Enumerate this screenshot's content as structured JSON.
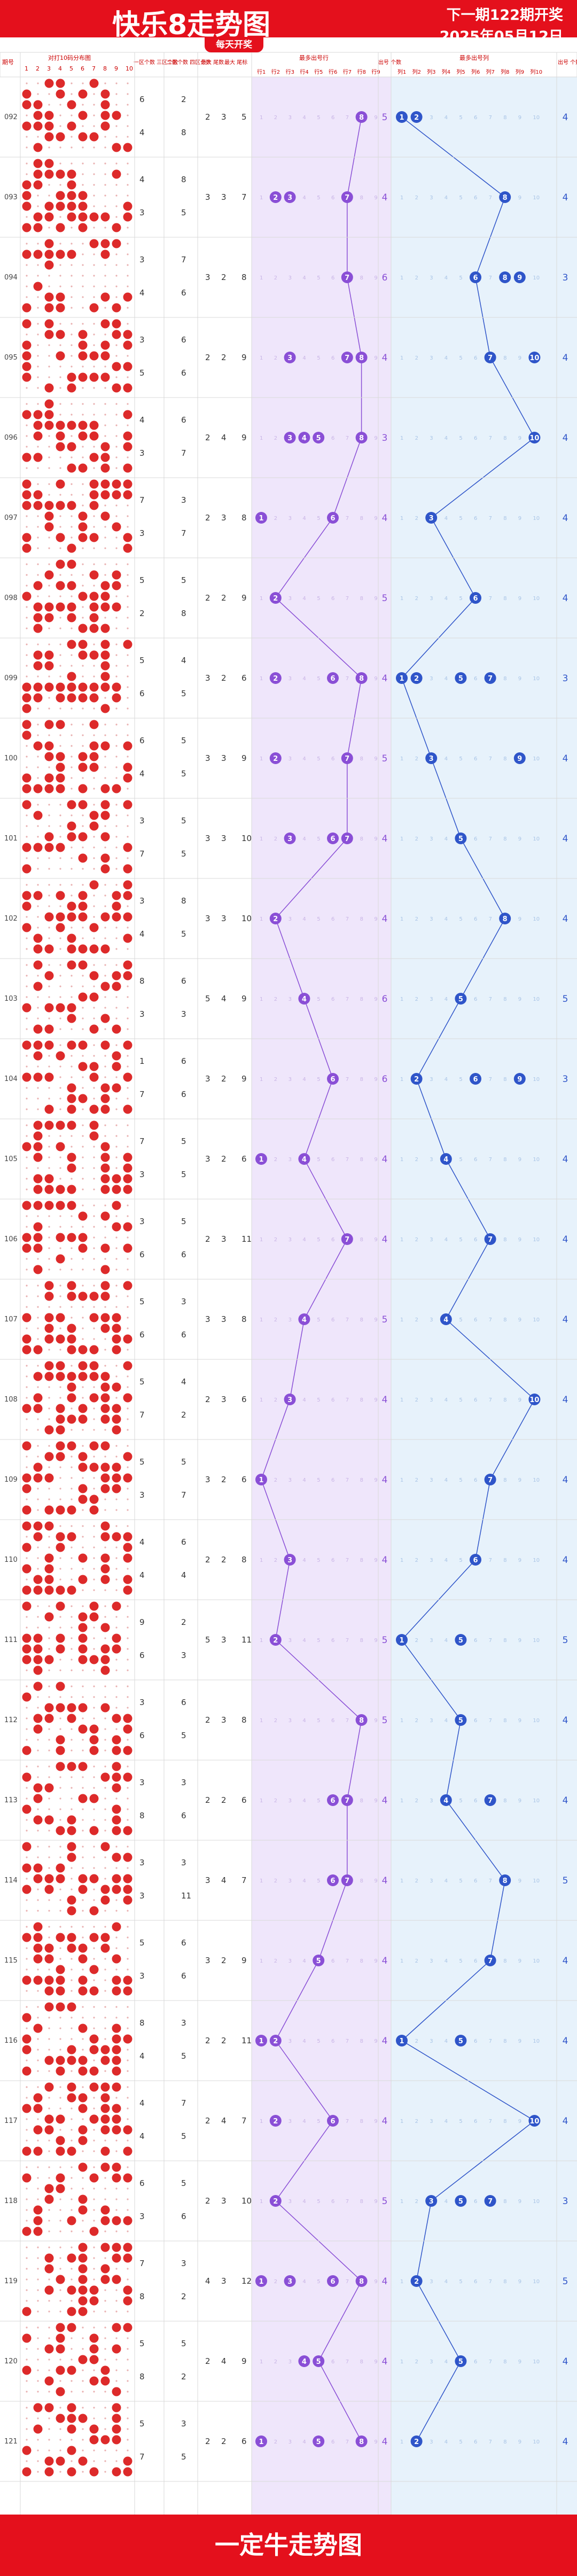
{
  "header": {
    "title": "快乐8走势图",
    "next_issue": "下一期122期开奖",
    "date": "2025年05月12日",
    "badge": "每天开奖"
  },
  "footer": {
    "brand": "一定牛走势图"
  },
  "colors": {
    "brand_red": "#e4101c",
    "ball_red": "#dd2a2a",
    "ball_purple": "#8a4fd6",
    "ball_blue": "#2f55c9",
    "band_purple": "#efe6fb",
    "band_blue": "#e7f2fb",
    "grid": "#d9d9d9"
  },
  "chart_data": [
    {
      "type": "table",
      "title": "",
      "columns": {
        "issue": "期号",
        "distribution": "对打10码分布图",
        "distribution_numbers": [
          "1",
          "2",
          "3",
          "4",
          "5",
          "6",
          "7",
          "8",
          "9",
          "10"
        ],
        "zone12": "一区个数 三区个数",
        "zone23": "二区个数 四区个数",
        "max_tail": "最大 尾数",
        "max_mark": "最大 尾标",
        "tail_count": "最多出号行",
        "tail_labels": [
          "行1",
          "行2",
          "行3",
          "行4",
          "行5",
          "行6",
          "行7",
          "行8",
          "行9"
        ],
        "out_count_a": "出号 个数",
        "section": "最多出号列",
        "section_labels": [
          "列1",
          "列2",
          "列3",
          "列4",
          "列5",
          "列6",
          "列7",
          "列8",
          "列9",
          "列10"
        ],
        "out_count_b": "出号 个数"
      },
      "rows": [
        {
          "issue": "092",
          "z": [
            6,
            2,
            4,
            8
          ],
          "m": [
            2,
            3,
            5
          ],
          "p": [
            8
          ],
          "pc": 5,
          "b": [
            1,
            2
          ],
          "bc": 4
        },
        {
          "issue": "093",
          "z": [
            4,
            8,
            3,
            5
          ],
          "m": [
            3,
            3,
            7
          ],
          "p": [
            2,
            3,
            7
          ],
          "pc": 4,
          "b": [
            8
          ],
          "bc": 4
        },
        {
          "issue": "094",
          "z": [
            3,
            7,
            4,
            6
          ],
          "m": [
            3,
            2,
            8
          ],
          "p": [
            7
          ],
          "pc": 6,
          "b": [
            6,
            8,
            9
          ],
          "bc": 3
        },
        {
          "issue": "095",
          "z": [
            3,
            6,
            5,
            6
          ],
          "m": [
            2,
            2,
            9
          ],
          "p": [
            3,
            7,
            8
          ],
          "pc": 4,
          "b": [
            7,
            10
          ],
          "bc": 4
        },
        {
          "issue": "096",
          "z": [
            4,
            6,
            3,
            7
          ],
          "m": [
            2,
            4,
            9
          ],
          "p": [
            3,
            4,
            5,
            8
          ],
          "pc": 3,
          "b": [
            10
          ],
          "bc": 4
        },
        {
          "issue": "097",
          "z": [
            7,
            3,
            3,
            7
          ],
          "m": [
            2,
            3,
            8
          ],
          "p": [
            1,
            6
          ],
          "pc": 4,
          "b": [
            3
          ],
          "bc": 4
        },
        {
          "issue": "098",
          "z": [
            5,
            5,
            2,
            8
          ],
          "m": [
            2,
            2,
            9
          ],
          "p": [
            2
          ],
          "pc": 5,
          "b": [
            6
          ],
          "bc": 4
        },
        {
          "issue": "099",
          "z": [
            5,
            4,
            6,
            5
          ],
          "m": [
            3,
            2,
            6
          ],
          "p": [
            2,
            6,
            8
          ],
          "pc": 4,
          "b": [
            1,
            2,
            5,
            7
          ],
          "bc": 3
        },
        {
          "issue": "100",
          "z": [
            6,
            5,
            4,
            5
          ],
          "m": [
            3,
            3,
            9
          ],
          "p": [
            2,
            7
          ],
          "pc": 5,
          "b": [
            3,
            9
          ],
          "bc": 4
        },
        {
          "issue": "101",
          "z": [
            3,
            5,
            7,
            5
          ],
          "m": [
            3,
            3,
            10
          ],
          "p": [
            3,
            6,
            7
          ],
          "pc": 4,
          "b": [
            5
          ],
          "bc": 4
        },
        {
          "issue": "102",
          "z": [
            3,
            8,
            4,
            5
          ],
          "m": [
            3,
            3,
            10
          ],
          "p": [
            2
          ],
          "pc": 4,
          "b": [
            8
          ],
          "bc": 4
        },
        {
          "issue": "103",
          "z": [
            8,
            6,
            3,
            3
          ],
          "m": [
            5,
            4,
            9
          ],
          "p": [
            4
          ],
          "pc": 6,
          "b": [
            5
          ],
          "bc": 5
        },
        {
          "issue": "104",
          "z": [
            1,
            6,
            7,
            6
          ],
          "m": [
            3,
            2,
            9
          ],
          "p": [
            6
          ],
          "pc": 6,
          "b": [
            2,
            6,
            9
          ],
          "bc": 3
        },
        {
          "issue": "105",
          "z": [
            7,
            5,
            3,
            5
          ],
          "m": [
            3,
            2,
            6
          ],
          "p": [
            1,
            4
          ],
          "pc": 4,
          "b": [
            4
          ],
          "bc": 4
        },
        {
          "issue": "106",
          "z": [
            3,
            5,
            6,
            6
          ],
          "m": [
            2,
            3,
            11
          ],
          "p": [
            7
          ],
          "pc": 4,
          "b": [
            7
          ],
          "bc": 4
        },
        {
          "issue": "107",
          "z": [
            5,
            3,
            6,
            6
          ],
          "m": [
            3,
            3,
            8
          ],
          "p": [
            4
          ],
          "pc": 5,
          "b": [
            4
          ],
          "bc": 4
        },
        {
          "issue": "108",
          "z": [
            5,
            4,
            7,
            2
          ],
          "m": [
            2,
            3,
            6
          ],
          "p": [
            3
          ],
          "pc": 4,
          "b": [
            10
          ],
          "bc": 4
        },
        {
          "issue": "109",
          "z": [
            5,
            5,
            3,
            7
          ],
          "m": [
            3,
            2,
            6
          ],
          "p": [
            1
          ],
          "pc": 4,
          "b": [
            7
          ],
          "bc": 4
        },
        {
          "issue": "110",
          "z": [
            4,
            6,
            4,
            4
          ],
          "m": [
            2,
            2,
            8
          ],
          "p": [
            3
          ],
          "pc": 4,
          "b": [
            6
          ],
          "bc": 4
        },
        {
          "issue": "111",
          "z": [
            9,
            2,
            6,
            3
          ],
          "m": [
            5,
            3,
            11
          ],
          "p": [
            2
          ],
          "pc": 5,
          "b": [
            1,
            5
          ],
          "bc": 5
        },
        {
          "issue": "112",
          "z": [
            3,
            6,
            6,
            5
          ],
          "m": [
            2,
            3,
            8
          ],
          "p": [
            8
          ],
          "pc": 5,
          "b": [
            5
          ],
          "bc": 4
        },
        {
          "issue": "113",
          "z": [
            3,
            3,
            8,
            6
          ],
          "m": [
            2,
            2,
            6
          ],
          "p": [
            6,
            7
          ],
          "pc": 4,
          "b": [
            4,
            7
          ],
          "bc": 4
        },
        {
          "issue": "114",
          "z": [
            3,
            3,
            3,
            11
          ],
          "m": [
            3,
            4,
            7
          ],
          "p": [
            6,
            7
          ],
          "pc": 4,
          "b": [
            8
          ],
          "bc": 5
        },
        {
          "issue": "115",
          "z": [
            5,
            6,
            3,
            6
          ],
          "m": [
            3,
            2,
            9
          ],
          "p": [
            5
          ],
          "pc": 4,
          "b": [
            7
          ],
          "bc": 4
        },
        {
          "issue": "116",
          "z": [
            8,
            3,
            4,
            5
          ],
          "m": [
            2,
            2,
            11
          ],
          "p": [
            1,
            2
          ],
          "pc": 4,
          "b": [
            1,
            5
          ],
          "bc": 4
        },
        {
          "issue": "117",
          "z": [
            4,
            7,
            4,
            5
          ],
          "m": [
            2,
            4,
            7
          ],
          "p": [
            2,
            6
          ],
          "pc": 4,
          "b": [
            10
          ],
          "bc": 4
        },
        {
          "issue": "118",
          "z": [
            6,
            5,
            3,
            6
          ],
          "m": [
            2,
            3,
            10
          ],
          "p": [
            2
          ],
          "pc": 5,
          "b": [
            3,
            5,
            7
          ],
          "bc": 3
        },
        {
          "issue": "119",
          "z": [
            7,
            3,
            8,
            2
          ],
          "m": [
            4,
            3,
            12
          ],
          "p": [
            1,
            3,
            6,
            8
          ],
          "pc": 4,
          "b": [
            2
          ],
          "bc": 5
        },
        {
          "issue": "120",
          "z": [
            5,
            5,
            8,
            2
          ],
          "m": [
            2,
            4,
            9
          ],
          "p": [
            4,
            5
          ],
          "pc": 4,
          "b": [
            5
          ],
          "bc": 4
        },
        {
          "issue": "121",
          "z": [
            5,
            3,
            7,
            5
          ],
          "m": [
            2,
            2,
            6
          ],
          "p": [
            1,
            5,
            8
          ],
          "pc": 4,
          "b": [
            2
          ],
          "bc": 4
        }
      ]
    }
  ]
}
